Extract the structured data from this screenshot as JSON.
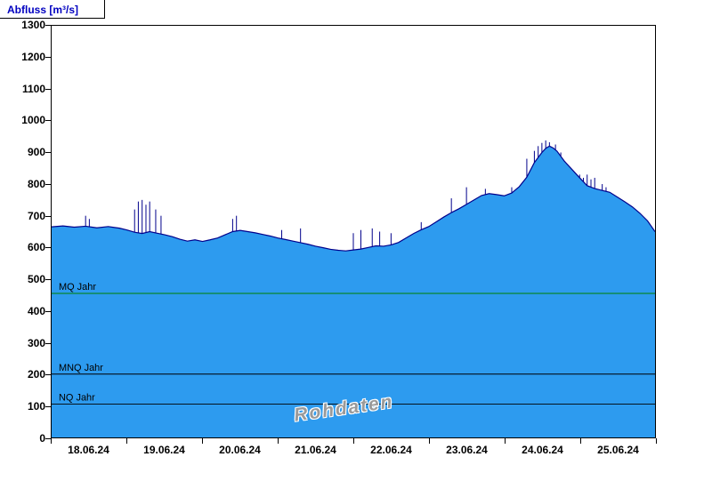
{
  "header": {
    "title": "Abfluss [m³/s]"
  },
  "chart_data": {
    "type": "area",
    "title": "Abfluss [m³/s]",
    "ylabel": "Abfluss [m³/s]",
    "xlabel": "",
    "ylim": [
      0,
      1300
    ],
    "y_ticks": [
      0,
      100,
      200,
      300,
      400,
      500,
      600,
      700,
      800,
      900,
      1000,
      1100,
      1200,
      1300
    ],
    "x_labels": [
      "18.06.24",
      "19.06.24",
      "20.06.24",
      "21.06.24",
      "22.06.24",
      "23.06.24",
      "24.06.24",
      "25.06.24"
    ],
    "watermark": "Rohdaten",
    "grid": "off",
    "legend": "none",
    "colors": {
      "area_fill": "#2D9BEF",
      "curve_line": "#00008B",
      "ref_green": "#008000",
      "ref_black": "#000000",
      "title_blue": "#0000C0"
    },
    "ref_lines": [
      {
        "label": "MQ Jahr",
        "value": 455,
        "color": "#008000"
      },
      {
        "label": "MNQ Jahr",
        "value": 200,
        "color": "#000000"
      },
      {
        "label": "NQ Jahr",
        "value": 105,
        "color": "#000000"
      }
    ],
    "series": [
      {
        "name": "Rohdaten",
        "points": [
          [
            0,
            665
          ],
          [
            0.15,
            668
          ],
          [
            0.3,
            664
          ],
          [
            0.45,
            667
          ],
          [
            0.6,
            662
          ],
          [
            0.75,
            666
          ],
          [
            0.9,
            661
          ],
          [
            1.0,
            655
          ],
          [
            1.1,
            648
          ],
          [
            1.2,
            644
          ],
          [
            1.3,
            650
          ],
          [
            1.4,
            645
          ],
          [
            1.5,
            640
          ],
          [
            1.6,
            634
          ],
          [
            1.7,
            626
          ],
          [
            1.8,
            620
          ],
          [
            1.9,
            624
          ],
          [
            2.0,
            619
          ],
          [
            2.1,
            624
          ],
          [
            2.2,
            630
          ],
          [
            2.3,
            640
          ],
          [
            2.4,
            650
          ],
          [
            2.5,
            654
          ],
          [
            2.6,
            650
          ],
          [
            2.7,
            646
          ],
          [
            2.8,
            641
          ],
          [
            2.9,
            636
          ],
          [
            3.0,
            630
          ],
          [
            3.1,
            625
          ],
          [
            3.2,
            620
          ],
          [
            3.3,
            615
          ],
          [
            3.4,
            610
          ],
          [
            3.5,
            604
          ],
          [
            3.6,
            599
          ],
          [
            3.7,
            594
          ],
          [
            3.8,
            591
          ],
          [
            3.9,
            589
          ],
          [
            4.0,
            592
          ],
          [
            4.1,
            595
          ],
          [
            4.2,
            600
          ],
          [
            4.3,
            605
          ],
          [
            4.4,
            604
          ],
          [
            4.5,
            608
          ],
          [
            4.6,
            616
          ],
          [
            4.7,
            630
          ],
          [
            4.8,
            644
          ],
          [
            4.9,
            656
          ],
          [
            5.0,
            666
          ],
          [
            5.1,
            681
          ],
          [
            5.2,
            696
          ],
          [
            5.3,
            710
          ],
          [
            5.4,
            722
          ],
          [
            5.5,
            736
          ],
          [
            5.6,
            750
          ],
          [
            5.7,
            764
          ],
          [
            5.8,
            770
          ],
          [
            5.9,
            767
          ],
          [
            6.0,
            763
          ],
          [
            6.1,
            772
          ],
          [
            6.2,
            792
          ],
          [
            6.3,
            822
          ],
          [
            6.4,
            868
          ],
          [
            6.5,
            900
          ],
          [
            6.55,
            913
          ],
          [
            6.6,
            920
          ],
          [
            6.65,
            914
          ],
          [
            6.7,
            904
          ],
          [
            6.8,
            872
          ],
          [
            6.9,
            846
          ],
          [
            7.0,
            820
          ],
          [
            7.1,
            795
          ],
          [
            7.2,
            786
          ],
          [
            7.3,
            780
          ],
          [
            7.4,
            774
          ],
          [
            7.5,
            759
          ],
          [
            7.6,
            744
          ],
          [
            7.7,
            728
          ],
          [
            7.8,
            708
          ],
          [
            7.9,
            684
          ],
          [
            8.0,
            650
          ]
        ]
      }
    ],
    "spikes": [
      [
        0.45,
        700
      ],
      [
        0.5,
        690
      ],
      [
        1.1,
        720
      ],
      [
        1.15,
        745
      ],
      [
        1.2,
        750
      ],
      [
        1.25,
        735
      ],
      [
        1.3,
        745
      ],
      [
        1.38,
        720
      ],
      [
        1.45,
        700
      ],
      [
        2.4,
        690
      ],
      [
        2.45,
        700
      ],
      [
        3.05,
        655
      ],
      [
        3.3,
        660
      ],
      [
        4.0,
        645
      ],
      [
        4.1,
        655
      ],
      [
        4.25,
        660
      ],
      [
        4.35,
        650
      ],
      [
        4.5,
        645
      ],
      [
        4.9,
        680
      ],
      [
        5.3,
        755
      ],
      [
        5.5,
        790
      ],
      [
        5.75,
        785
      ],
      [
        6.1,
        790
      ],
      [
        6.3,
        880
      ],
      [
        6.4,
        905
      ],
      [
        6.45,
        920
      ],
      [
        6.5,
        930
      ],
      [
        6.55,
        938
      ],
      [
        6.6,
        932
      ],
      [
        6.68,
        925
      ],
      [
        6.75,
        900
      ],
      [
        7.0,
        830
      ],
      [
        7.05,
        820
      ],
      [
        7.1,
        830
      ],
      [
        7.15,
        815
      ],
      [
        7.2,
        820
      ],
      [
        7.3,
        800
      ],
      [
        7.35,
        790
      ]
    ]
  }
}
